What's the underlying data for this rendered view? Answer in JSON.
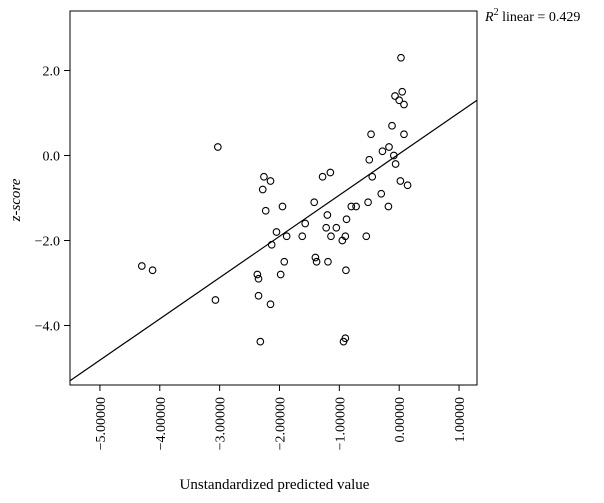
{
  "chart_data": {
    "type": "scatter",
    "xlabel": "Unstandardized predicted value",
    "ylabel": "z-score",
    "xlim": [
      -5.5,
      1.3
    ],
    "ylim": [
      -5.4,
      3.4
    ],
    "x_ticks": [
      -5.0,
      -4.0,
      -3.0,
      -2.0,
      -1.0,
      0.0,
      1.0
    ],
    "x_tick_labels": [
      "-5.00000",
      "-4.00000",
      "-3.00000",
      "-2.00000",
      "-1.00000",
      "0.00000",
      "1.00000"
    ],
    "y_ticks": [
      -4.0,
      -2.0,
      0.0,
      2.0
    ],
    "y_tick_labels": [
      "-4.0",
      "-2.0",
      "0.0",
      "2.0"
    ],
    "annotation": {
      "prefix": "R",
      "sup": "2",
      "suffix": " linear = 0.429"
    },
    "fit_line": {
      "x": [
        -5.5,
        1.3
      ],
      "y": [
        -5.3,
        1.3
      ]
    },
    "grid": false,
    "points": [
      [
        -4.3,
        -2.6
      ],
      [
        -4.12,
        -2.7
      ],
      [
        -3.07,
        -3.4
      ],
      [
        -3.03,
        0.2
      ],
      [
        -2.37,
        -2.8
      ],
      [
        -2.35,
        -2.9
      ],
      [
        -2.35,
        -3.3
      ],
      [
        -2.32,
        -4.38
      ],
      [
        -2.28,
        -0.8
      ],
      [
        -2.26,
        -0.5
      ],
      [
        -2.23,
        -1.3
      ],
      [
        -2.15,
        -0.6
      ],
      [
        -2.15,
        -3.5
      ],
      [
        -2.13,
        -2.1
      ],
      [
        -2.05,
        -1.8
      ],
      [
        -1.98,
        -2.8
      ],
      [
        -1.95,
        -1.2
      ],
      [
        -1.92,
        -2.5
      ],
      [
        -1.88,
        -1.9
      ],
      [
        -1.62,
        -1.9
      ],
      [
        -1.57,
        -1.6
      ],
      [
        -1.42,
        -1.1
      ],
      [
        -1.4,
        -2.4
      ],
      [
        -1.38,
        -2.5
      ],
      [
        -1.28,
        -0.5
      ],
      [
        -1.22,
        -1.7
      ],
      [
        -1.2,
        -1.4
      ],
      [
        -1.19,
        -2.5
      ],
      [
        -1.15,
        -0.4
      ],
      [
        -1.14,
        -1.9
      ],
      [
        -1.05,
        -1.7
      ],
      [
        -0.95,
        -2.0
      ],
      [
        -0.93,
        -4.38
      ],
      [
        -0.9,
        -4.3
      ],
      [
        -0.9,
        -1.9
      ],
      [
        -0.89,
        -2.7
      ],
      [
        -0.88,
        -1.5
      ],
      [
        -0.8,
        -1.2
      ],
      [
        -0.72,
        -1.2
      ],
      [
        -0.55,
        -1.9
      ],
      [
        -0.52,
        -1.1
      ],
      [
        -0.5,
        -0.1
      ],
      [
        -0.47,
        0.5
      ],
      [
        -0.45,
        -0.5
      ],
      [
        -0.3,
        -0.9
      ],
      [
        -0.28,
        0.1
      ],
      [
        -0.18,
        -1.2
      ],
      [
        -0.17,
        0.2
      ],
      [
        -0.12,
        0.7
      ],
      [
        -0.09,
        -0.0
      ],
      [
        -0.07,
        1.4
      ],
      [
        -0.06,
        -0.2
      ],
      [
        0.0,
        1.3
      ],
      [
        0.02,
        -0.6
      ],
      [
        0.03,
        2.3
      ],
      [
        0.05,
        1.5
      ],
      [
        0.08,
        1.2
      ],
      [
        0.08,
        0.5
      ],
      [
        0.14,
        -0.7
      ]
    ]
  }
}
